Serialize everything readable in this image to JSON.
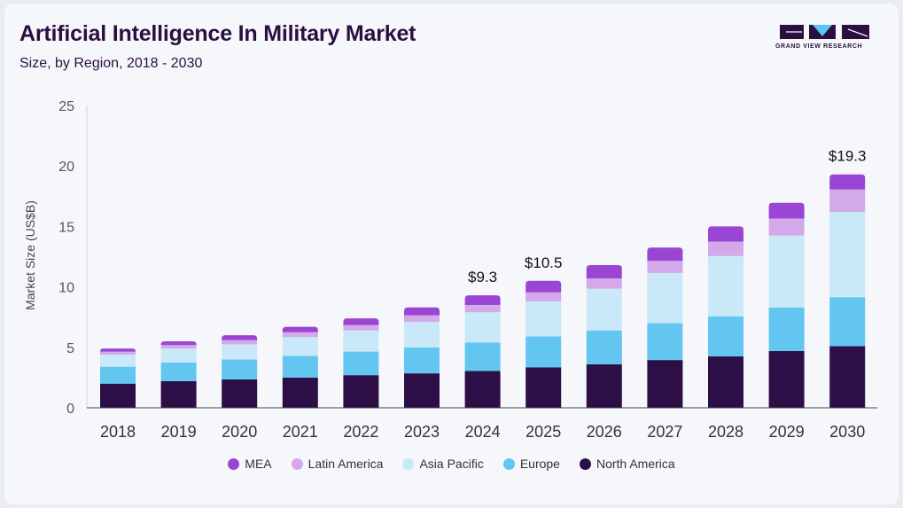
{
  "header": {
    "title": "Artificial Intelligence In Military Market",
    "subtitle": "Size, by Region, 2018 - 2030"
  },
  "logo": {
    "text": "GRAND VIEW RESEARCH"
  },
  "chart_data": {
    "type": "bar",
    "stacked": true,
    "categories": [
      "2018",
      "2019",
      "2020",
      "2021",
      "2022",
      "2023",
      "2024",
      "2025",
      "2026",
      "2027",
      "2028",
      "2029",
      "2030"
    ],
    "ylabel": "Market Size (US$B)",
    "xlabel": "",
    "ylim": [
      0,
      25
    ],
    "yticks": [
      0,
      5,
      10,
      15,
      20,
      25
    ],
    "grid": false,
    "legend_position": "bottom",
    "series": [
      {
        "name": "North America",
        "color": "#2d0f47",
        "values": [
          2.0,
          2.2,
          2.35,
          2.5,
          2.7,
          2.85,
          3.05,
          3.35,
          3.6,
          3.95,
          4.25,
          4.7,
          5.1
        ]
      },
      {
        "name": "Europe",
        "color": "#62c6f1",
        "values": [
          1.4,
          1.55,
          1.65,
          1.8,
          1.95,
          2.15,
          2.35,
          2.55,
          2.8,
          3.05,
          3.3,
          3.6,
          4.05
        ]
      },
      {
        "name": "Asia Pacific",
        "color": "#c9e8f8",
        "values": [
          1.0,
          1.15,
          1.25,
          1.55,
          1.75,
          2.1,
          2.5,
          2.9,
          3.45,
          4.15,
          5.0,
          5.95,
          7.05
        ]
      },
      {
        "name": "Latin America",
        "color": "#d3a9ea",
        "values": [
          0.25,
          0.3,
          0.35,
          0.4,
          0.45,
          0.55,
          0.6,
          0.75,
          0.85,
          1.0,
          1.2,
          1.4,
          1.85
        ]
      },
      {
        "name": "MEA",
        "color": "#9a45d4",
        "values": [
          0.25,
          0.3,
          0.4,
          0.45,
          0.55,
          0.65,
          0.8,
          0.95,
          1.1,
          1.1,
          1.25,
          1.3,
          1.25
        ]
      }
    ],
    "annotations": [
      {
        "category": "2024",
        "label": "$9.3"
      },
      {
        "category": "2025",
        "label": "$10.5"
      },
      {
        "category": "2030",
        "label": "$19.3"
      }
    ],
    "legend_order": [
      "MEA",
      "Latin America",
      "Asia Pacific",
      "Europe",
      "North America"
    ]
  }
}
